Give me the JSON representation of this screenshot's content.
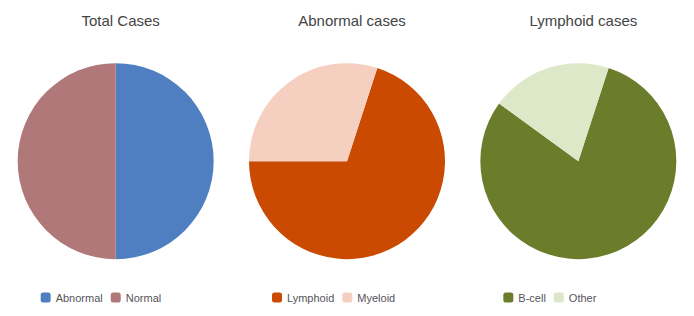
{
  "chart_data": [
    {
      "type": "pie",
      "title": "Total Cases",
      "categories": [
        "Abnormal",
        "Normal"
      ],
      "values": [
        50,
        50
      ],
      "colors": [
        "#4f7fc0",
        "#b07878"
      ],
      "legend": "bottom"
    },
    {
      "type": "pie",
      "title": "Abnormal cases",
      "categories": [
        "Lymphoid",
        "Myeloid"
      ],
      "values": [
        70,
        30
      ],
      "colors": [
        "#c94a00",
        "#f5d0c0"
      ],
      "legend": "bottom"
    },
    {
      "type": "pie",
      "title": "Lymphoid cases",
      "categories": [
        "B-cell",
        "Other"
      ],
      "values": [
        80,
        20
      ],
      "colors": [
        "#6b7c2a",
        "#dce8c8"
      ],
      "legend": "bottom"
    }
  ]
}
